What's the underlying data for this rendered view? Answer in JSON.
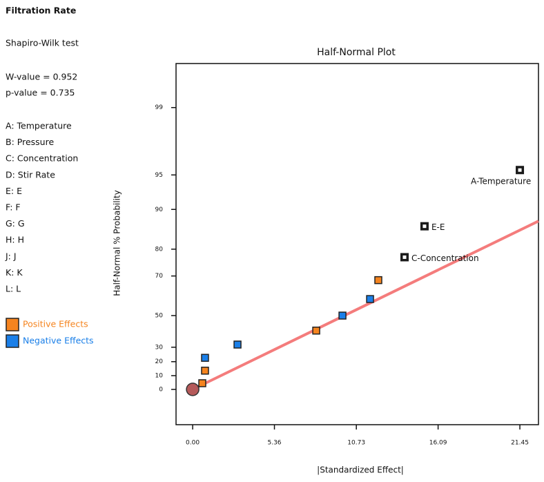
{
  "panel": {
    "title": "Filtration Rate",
    "test": "Shapiro-Wilk test",
    "w_value": "W-value = 0.952",
    "p_value": "p-value = 0.735",
    "factors": [
      "A: Temperature",
      "B: Pressure",
      "C: Concentration",
      "D: Stir Rate",
      "E: E",
      "F: F",
      "G: G",
      "H: H",
      "J: J",
      "K: K",
      "L: L"
    ]
  },
  "chart_data": {
    "type": "halfnormal",
    "title": "Half-Normal Plot",
    "x_label": "|Standardized Effect|",
    "y_label": "Half-Normal % Probability",
    "xlim": [
      -1.09,
      22.67
    ],
    "xticks": [
      {
        "value": 0,
        "label": "0.00"
      },
      5.36,
      10.73,
      16.09,
      21.45
    ],
    "ylim": [
      -25.3,
      99.71
    ],
    "yticks": [
      0,
      10,
      20,
      30,
      50,
      70,
      80,
      90,
      95,
      99
    ],
    "series": [
      {
        "name": "Positive Effects",
        "color": "#f5841f",
        "x": [
          0.63,
          0.81,
          8.1,
          12.17
        ],
        "values": [
          4.5,
          13.6,
          40.9,
          68.2
        ]
      },
      {
        "name": "Negative Effects",
        "color": "#1a7fe8",
        "x": [
          0.81,
          2.94,
          9.82,
          11.63
        ],
        "values": [
          22.7,
          31.8,
          50,
          59.1
        ]
      }
    ],
    "labeled_terms": {
      "color": "#1a1a1a",
      "labels": [
        "C-Concentration",
        "E-E",
        "A-Temperature"
      ],
      "x": [
        13.89,
        15.2,
        21.45
      ],
      "values": [
        77.3,
        86.4,
        95.5
      ]
    },
    "origin": {
      "x": 0,
      "value": 0,
      "color": "#b55a5a"
    },
    "fit_line": {
      "color": "#f47c7c",
      "x": [
        0,
        22.67
      ],
      "values": [
        0,
        87.6
      ]
    }
  }
}
